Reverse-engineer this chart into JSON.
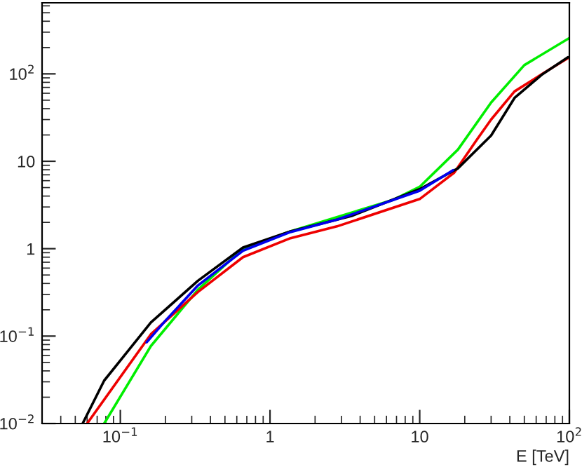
{
  "chart_data": {
    "type": "line",
    "xlabel": "E [TeV]",
    "log": "xy",
    "grid": false,
    "marker": "none",
    "line_style": "solid",
    "xlim": [
      0.03,
      100
    ],
    "ylim": [
      0.01,
      650
    ],
    "xticks": [
      {
        "value": 0.1,
        "label": "10$^{−1}$"
      },
      1,
      10,
      {
        "value": 100,
        "label": "10$^{2}$"
      }
    ],
    "yticks": [
      {
        "value": 0.01,
        "label": "10$^{−2}$"
      },
      {
        "value": 0.1,
        "label": "10$^{−1}$"
      },
      1,
      10,
      {
        "value": 100,
        "label": "10$^{2}$"
      }
    ],
    "series": [
      {
        "color": "#00ee00",
        "x": [
          0.078,
          0.16,
          0.33,
          0.66,
          1.37,
          6.6,
          10,
          18,
          30,
          50,
          100
        ],
        "values": [
          0.01,
          0.077,
          0.34,
          1.0,
          1.58,
          3.6,
          5.1,
          13.6,
          47,
          126,
          257
        ]
      },
      {
        "color": "#ee0000",
        "x": [
          0.06,
          0.16,
          0.33,
          0.66,
          1.37,
          2.8,
          10,
          17,
          24,
          30,
          43,
          66,
          100
        ],
        "values": [
          0.01,
          0.105,
          0.32,
          0.8,
          1.32,
          1.8,
          3.7,
          7.4,
          17.5,
          30,
          63,
          100,
          155
        ]
      },
      {
        "color": "#000000",
        "x": [
          0.056,
          0.078,
          0.16,
          0.33,
          0.66,
          1.37,
          2.8,
          3.5,
          10,
          18,
          30,
          43,
          66,
          98
        ],
        "values": [
          0.01,
          0.031,
          0.143,
          0.43,
          1.03,
          1.58,
          2.15,
          2.37,
          4.8,
          8.3,
          19.7,
          53,
          99,
          155
        ]
      },
      {
        "color": "#0000ee",
        "x": [
          0.15,
          0.2,
          0.33,
          0.66,
          1.37,
          2.8,
          10,
          16.7
        ],
        "values": [
          0.085,
          0.15,
          0.38,
          0.95,
          1.55,
          2.15,
          4.6,
          7.9
        ]
      }
    ]
  }
}
